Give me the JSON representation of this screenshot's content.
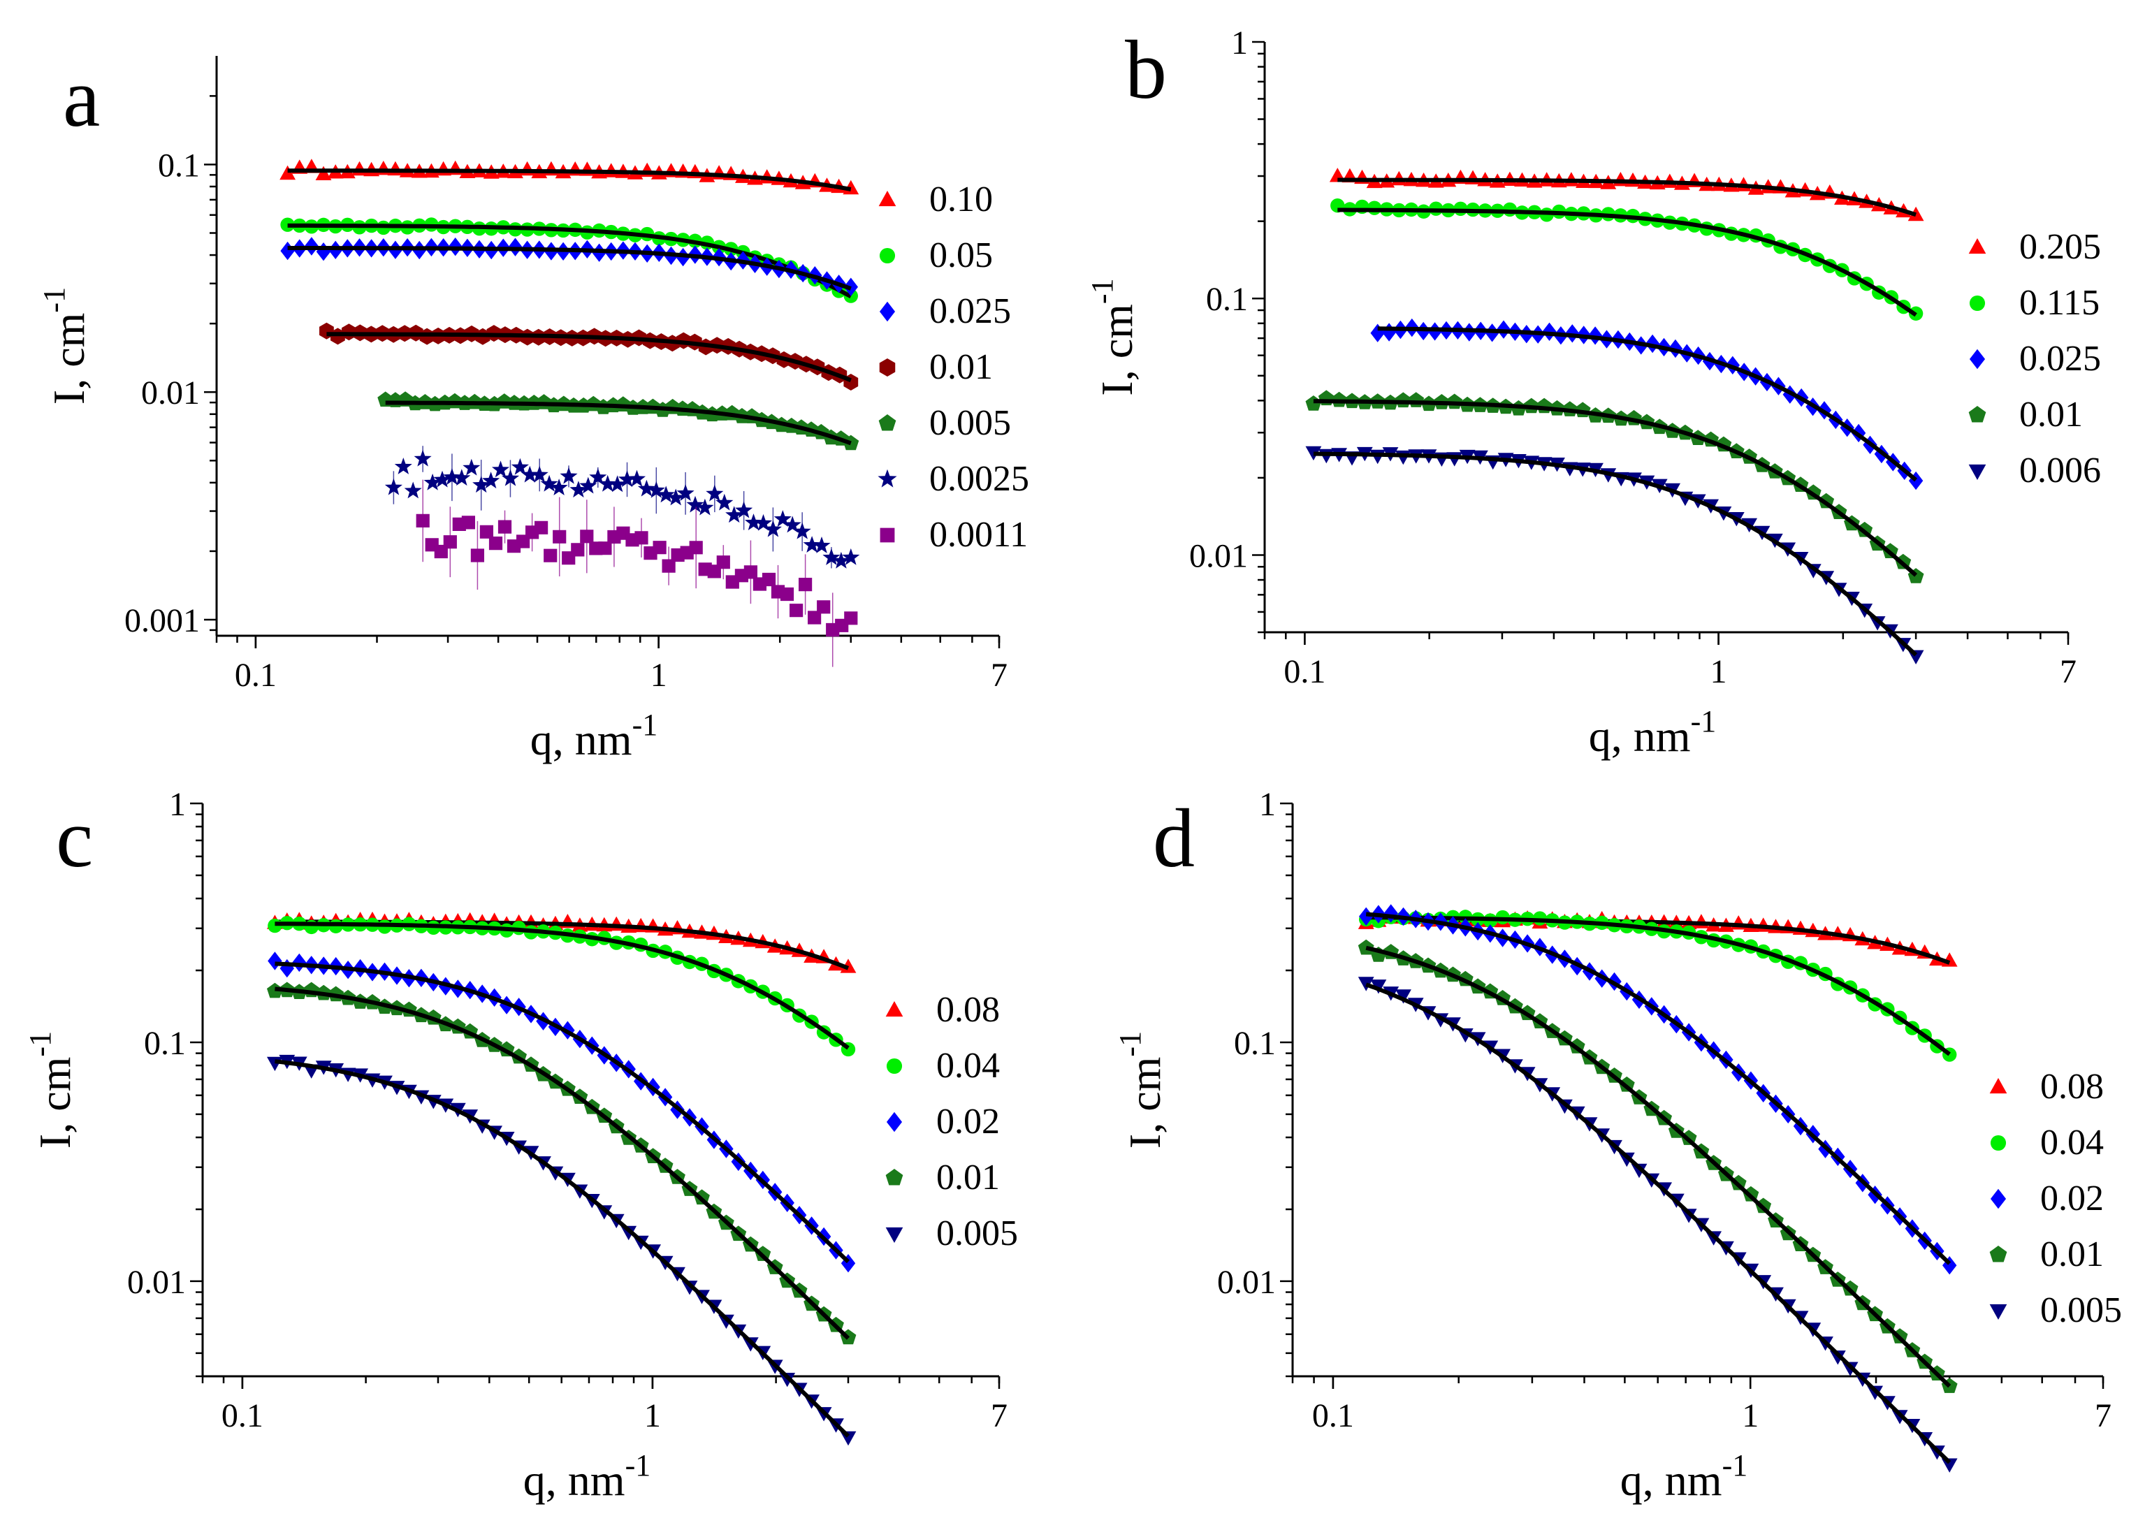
{
  "chart_data": [
    {
      "panel": "a",
      "type": "scatter",
      "xscale": "log",
      "yscale": "log",
      "xlim": [
        0.08,
        7
      ],
      "ylim": [
        0.00085,
        0.3
      ],
      "xticks": [
        "0.1",
        "1",
        "7"
      ],
      "yticks": [
        "0.001",
        "0.01",
        "0.1"
      ],
      "xlabel": "q, nm",
      "xlabel_sup": "-1",
      "ylabel": "I, cm",
      "ylabel_sup": "-1",
      "series": [
        {
          "name": "0.10",
          "color": "#ff0000",
          "marker": "triangle-up",
          "level": 0.094,
          "qc": 6,
          "qmin": 0.12,
          "qmax": 3.0,
          "fit": true
        },
        {
          "name": "0.05",
          "color": "#00ee00",
          "marker": "circle",
          "level": 0.054,
          "qc": 2.6,
          "qmin": 0.12,
          "qmax": 3.0,
          "fit": true
        },
        {
          "name": "0.025",
          "color": "#0000ff",
          "marker": "diamond",
          "level": 0.043,
          "qc": 3.8,
          "qmin": 0.12,
          "qmax": 3.0,
          "fit": true
        },
        {
          "name": "0.01",
          "color": "#8b0000",
          "marker": "hexagon",
          "level": 0.018,
          "qc": 3.5,
          "qmin": 0.15,
          "qmax": 3.0,
          "fit": true
        },
        {
          "name": "0.005",
          "color": "#1a7a1a",
          "marker": "pentagon",
          "level": 0.009,
          "qc": 3.8,
          "qmin": 0.21,
          "qmax": 3.0,
          "fit": true
        },
        {
          "name": "0.0025",
          "color": "#000080",
          "marker": "star",
          "level": 0.0044,
          "qc": 2.2,
          "qmin": 0.22,
          "qmax": 3.0,
          "fit": false,
          "noise": 0.18
        },
        {
          "name": "0.0011",
          "color": "#8b008b",
          "marker": "square",
          "level": 0.0023,
          "qc": 2.2,
          "qmin": 0.26,
          "qmax": 3.0,
          "fit": false,
          "noise": 0.3
        }
      ]
    },
    {
      "panel": "b",
      "type": "scatter",
      "xscale": "log",
      "yscale": "log",
      "xlim": [
        0.08,
        7
      ],
      "ylim": [
        0.005,
        1
      ],
      "xticks": [
        "0.1",
        "1",
        "7"
      ],
      "yticks": [
        "0.01",
        "0.1",
        "1"
      ],
      "xlabel": "q, nm",
      "xlabel_sup": "-1",
      "ylabel": "I, cm",
      "ylabel_sup": "-1",
      "series": [
        {
          "name": "0.205",
          "color": "#ff0000",
          "marker": "triangle-up",
          "level": 0.29,
          "qc": 4.5,
          "qmin": 0.12,
          "qmax": 3.0,
          "fit": true
        },
        {
          "name": "0.115",
          "color": "#00ee00",
          "marker": "circle",
          "level": 0.222,
          "qc": 2.1,
          "qmin": 0.12,
          "qmax": 3.0,
          "fit": true
        },
        {
          "name": "0.025",
          "color": "#0000ff",
          "marker": "diamond",
          "level": 0.077,
          "qc": 1.5,
          "qmin": 0.15,
          "qmax": 3.0,
          "fit": true
        },
        {
          "name": "0.01",
          "color": "#1a7a1a",
          "marker": "pentagon",
          "level": 0.04,
          "qc": 1.3,
          "qmin": 0.105,
          "qmax": 3.0,
          "fit": true
        },
        {
          "name": "0.006",
          "color": "#000080",
          "marker": "triangle-down",
          "level": 0.025,
          "qc": 1.1,
          "qmin": 0.105,
          "qmax": 3.0,
          "fit": true
        }
      ]
    },
    {
      "panel": "c",
      "type": "scatter",
      "xscale": "log",
      "yscale": "log",
      "xlim": [
        0.08,
        7
      ],
      "ylim": [
        0.004,
        1
      ],
      "xticks": [
        "0.1",
        "1",
        "7"
      ],
      "yticks": [
        "0.01",
        "0.1",
        "1"
      ],
      "xlabel": "q, nm",
      "xlabel_sup": "-1",
      "ylabel": "I, cm",
      "ylabel_sup": "-1",
      "series": [
        {
          "name": "0.08",
          "color": "#ff0000",
          "marker": "triangle-up",
          "level": 0.32,
          "qc": 3.6,
          "qmin": 0.12,
          "qmax": 3.0,
          "fit": true
        },
        {
          "name": "0.04",
          "color": "#00ee00",
          "marker": "circle",
          "level": 0.315,
          "qc": 1.7,
          "qmin": 0.12,
          "qmax": 3.0,
          "fit": true
        },
        {
          "name": "0.02",
          "color": "#0000ff",
          "marker": "diamond",
          "level": 0.222,
          "qc": 0.55,
          "qmin": 0.12,
          "qmax": 3.0,
          "fit": true
        },
        {
          "name": "0.01",
          "color": "#1a7a1a",
          "marker": "pentagon",
          "level": 0.18,
          "qc": 0.4,
          "qmin": 0.12,
          "qmax": 3.0,
          "fit": true
        },
        {
          "name": "0.005",
          "color": "#000080",
          "marker": "triangle-down",
          "level": 0.092,
          "qc": 0.34,
          "qmin": 0.12,
          "qmax": 3.0,
          "fit": true
        }
      ]
    },
    {
      "panel": "d",
      "type": "scatter",
      "xscale": "log",
      "yscale": "log",
      "xlim": [
        0.08,
        7
      ],
      "ylim": [
        0.004,
        1
      ],
      "xticks": [
        "0.1",
        "1",
        "7"
      ],
      "yticks": [
        "0.01",
        "0.1",
        "1"
      ],
      "xlabel": "q, nm",
      "xlabel_sup": "-1",
      "ylabel": "I, cm",
      "ylabel_sup": "-1",
      "series": [
        {
          "name": "0.08",
          "color": "#ff0000",
          "marker": "triangle-up",
          "level": 0.325,
          "qc": 3.8,
          "qmin": 0.12,
          "qmax": 3.0,
          "fit": true
        },
        {
          "name": "0.04",
          "color": "#00ee00",
          "marker": "circle",
          "level": 0.335,
          "qc": 1.55,
          "qmin": 0.12,
          "qmax": 3.0,
          "fit": true
        },
        {
          "name": "0.02",
          "color": "#0000ff",
          "marker": "diamond",
          "level": 0.37,
          "qc": 0.4,
          "qmin": 0.12,
          "qmax": 3.0,
          "fit": true
        },
        {
          "name": "0.01",
          "color": "#1a7a1a",
          "marker": "pentagon",
          "level": 0.31,
          "qc": 0.22,
          "qmin": 0.12,
          "qmax": 3.0,
          "fit": true
        },
        {
          "name": "0.005",
          "color": "#000080",
          "marker": "triangle-down",
          "level": 0.255,
          "qc": 0.16,
          "qmin": 0.12,
          "qmax": 3.0,
          "fit": true
        }
      ]
    }
  ]
}
